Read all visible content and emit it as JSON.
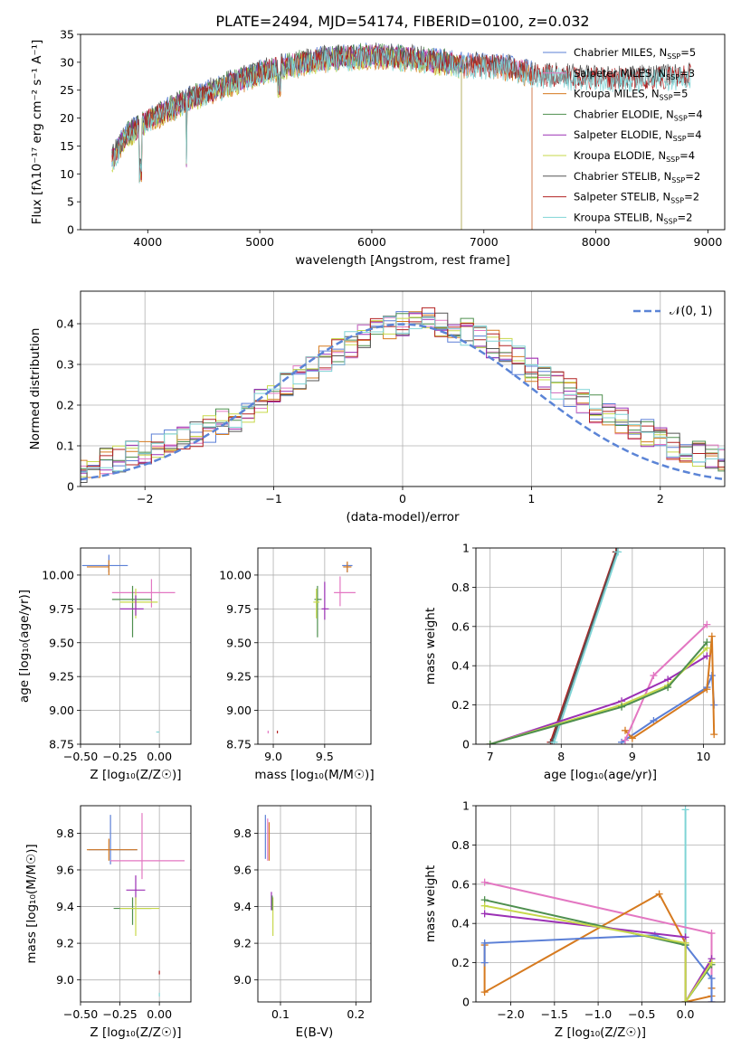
{
  "figure": {
    "title": "PLATE=2494, MJD=54174, FIBERID=0100, z=0.032"
  },
  "chart_data": [
    {
      "id": "spectrum",
      "type": "line",
      "xlabel": "wavelength [Angstrom, rest frame]",
      "ylabel": "Flux [f",
      "ylabel_html": "Flux [fλ10⁻¹⁷ erg cm⁻² s⁻¹ A⁻¹]",
      "xlim": [
        3400,
        9150
      ],
      "ylim": [
        0,
        35
      ],
      "xticks": [
        4000,
        5000,
        6000,
        7000,
        8000,
        9000
      ],
      "yticks": [
        0,
        5,
        10,
        15,
        20,
        25,
        30,
        35
      ],
      "grid": false,
      "legend_position": "top-right",
      "series": [
        {
          "name": "Chabrier MILES, N",
          "sub": "SSP",
          "suffix": "=5",
          "color": "#5b7fd6",
          "x_range": [
            3680,
            7430
          ]
        },
        {
          "name": "Salpeter MILES, N",
          "sub": "SSP",
          "suffix": "=3",
          "color": "#e377c2",
          "x_range": [
            3680,
            7430
          ]
        },
        {
          "name": "Kroupa MILES, N",
          "sub": "SSP",
          "suffix": "=5",
          "color": "#d67a1f",
          "x_range": [
            3680,
            7430
          ]
        },
        {
          "name": "Chabrier ELODIE, N",
          "sub": "SSP",
          "suffix": "=4",
          "color": "#4e8f4e",
          "x_range": [
            3680,
            6800
          ]
        },
        {
          "name": "Salpeter ELODIE, N",
          "sub": "SSP",
          "suffix": "=4",
          "color": "#9b30b5",
          "x_range": [
            3680,
            6800
          ]
        },
        {
          "name": "Kroupa ELODIE, N",
          "sub": "SSP",
          "suffix": "=4",
          "color": "#c7d84a",
          "x_range": [
            3680,
            6800
          ]
        },
        {
          "name": "Chabrier STELIB, N",
          "sub": "SSP",
          "suffix": "=2",
          "color": "#555555",
          "x_range": [
            3680,
            8850
          ]
        },
        {
          "name": "Salpeter STELIB, N",
          "sub": "SSP",
          "suffix": "=2",
          "color": "#b22222",
          "x_range": [
            3680,
            8850
          ]
        },
        {
          "name": "Kroupa STELIB, N",
          "sub": "SSP",
          "suffix": "=2",
          "color": "#7fd4d6",
          "x_range": [
            3680,
            8850
          ]
        }
      ],
      "continuum": {
        "x": [
          3680,
          3800,
          4000,
          4200,
          4400,
          4600,
          4800,
          5000,
          5300,
          5600,
          6000,
          6400,
          6800,
          7200,
          7500,
          8000,
          8500,
          8850
        ],
        "y": [
          13,
          17,
          20,
          22,
          24,
          25.5,
          27,
          28.5,
          30,
          31,
          31.5,
          31,
          30,
          29.5,
          28,
          27.5,
          27.5,
          28
        ]
      }
    },
    {
      "id": "residuals",
      "type": "step-histogram",
      "xlabel": "(data-model)/error",
      "ylabel": "Normed distribution",
      "xlim": [
        -2.5,
        2.5
      ],
      "ylim": [
        0,
        0.48
      ],
      "xticks": [
        -2,
        -1,
        0,
        1,
        2
      ],
      "yticks": [
        0.0,
        0.1,
        0.2,
        0.3,
        0.4
      ],
      "grid": true,
      "bin_width": 0.1,
      "base_values": [
        0.02,
        0.02,
        0.03,
        0.03,
        0.04,
        0.04,
        0.05,
        0.06,
        0.07,
        0.08,
        0.09,
        0.1,
        0.11,
        0.12,
        0.13,
        0.14,
        0.16,
        0.17,
        0.19,
        0.21,
        0.23,
        0.25,
        0.27,
        0.29,
        0.31,
        0.33,
        0.35,
        0.37,
        0.38,
        0.39,
        0.4,
        0.4,
        0.41,
        0.4,
        0.39,
        0.38,
        0.37,
        0.35,
        0.33,
        0.31,
        0.29,
        0.27,
        0.25,
        0.23,
        0.21,
        0.19,
        0.17,
        0.16,
        0.14,
        0.13,
        0.11,
        0.1,
        0.09,
        0.08,
        0.07,
        0.06,
        0.05,
        0.04,
        0.03,
        0.03,
        0.02
      ],
      "legend_position": "top-right",
      "legend_label": "𝒩(0, 1)",
      "reference_color": "#5b84d6"
    },
    {
      "id": "age-vs-Z",
      "type": "errorbar",
      "xlabel": "Z [log",
      "xlabel_html": "Z [log₁₀(Z/Z☉)]",
      "ylabel_html": "age  [log₁₀(age/yr)]",
      "xlim": [
        -0.5,
        0.2
      ],
      "ylim": [
        8.75,
        10.2
      ],
      "xticks": [
        -0.5,
        -0.25,
        0.0
      ],
      "xticklabels": [
        "−0.50",
        "−0.25",
        "0.00"
      ],
      "yticks": [
        8.75,
        9.0,
        9.25,
        9.5,
        9.75,
        10.0
      ],
      "yticklabels": [
        "8.75",
        "9.00",
        "9.25",
        "9.50",
        "9.75",
        "10.00"
      ],
      "grid": true,
      "points": [
        {
          "x": -0.32,
          "y": 10.07,
          "xerr": [
            0.17,
            0.12
          ],
          "yerr": [
            0.05,
            0.08
          ],
          "color": "#5b7fd6"
        },
        {
          "x": -0.32,
          "y": 10.06,
          "xerr": [
            0.14,
            0.0
          ],
          "yerr": [
            0.06,
            0.05
          ],
          "color": "#d67a1f"
        },
        {
          "x": -0.05,
          "y": 9.87,
          "xerr": [
            0.25,
            0.15
          ],
          "yerr": [
            0.11,
            0.1
          ],
          "color": "#e377c2"
        },
        {
          "x": -0.17,
          "y": 9.82,
          "xerr": [
            0.13,
            0.12
          ],
          "yerr": [
            0.28,
            0.1
          ],
          "color": "#4e8f4e"
        },
        {
          "x": -0.15,
          "y": 9.8,
          "xerr": [
            0.1,
            0.14
          ],
          "yerr": [
            0.12,
            0.1
          ],
          "color": "#c7d84a"
        },
        {
          "x": -0.15,
          "y": 9.75,
          "xerr": [
            0.1,
            0.05
          ],
          "yerr": [
            0.05,
            0.1
          ],
          "color": "#9b30b5"
        },
        {
          "x": 0.0,
          "y": 8.84,
          "xerr": [
            0.02,
            0.0
          ],
          "yerr": [
            0.0,
            0.0
          ],
          "color": "#7fd4d6"
        }
      ]
    },
    {
      "id": "age-vs-mass",
      "type": "errorbar",
      "xlabel_html": "mass [log₁₀(M/M☉)]",
      "xlim": [
        8.85,
        9.95
      ],
      "ylim": [
        8.75,
        10.2
      ],
      "xticks": [
        9.0,
        9.5
      ],
      "xticklabels": [
        "9.0",
        "9.5"
      ],
      "yticks": [
        8.75,
        9.0,
        9.25,
        9.5,
        9.75,
        10.0
      ],
      "yticklabels": [
        "8.75",
        "9.00",
        "9.25",
        "9.50",
        "9.75",
        "10.00"
      ],
      "grid": true,
      "points": [
        {
          "x": 9.72,
          "y": 10.07,
          "xerr": [
            0.05,
            0.05
          ],
          "yerr": [
            0.05,
            0.02
          ],
          "color": "#5b7fd6"
        },
        {
          "x": 9.72,
          "y": 10.06,
          "xerr": [
            0.04,
            0.04
          ],
          "yerr": [
            0.04,
            0.04
          ],
          "color": "#d67a1f"
        },
        {
          "x": 9.65,
          "y": 9.87,
          "xerr": [
            0.06,
            0.15
          ],
          "yerr": [
            0.1,
            0.12
          ],
          "color": "#e377c2"
        },
        {
          "x": 9.43,
          "y": 9.82,
          "xerr": [
            0.03,
            0.04
          ],
          "yerr": [
            0.28,
            0.1
          ],
          "color": "#4e8f4e"
        },
        {
          "x": 9.42,
          "y": 9.8,
          "xerr": [
            0.03,
            0.03
          ],
          "yerr": [
            0.12,
            0.1
          ],
          "color": "#c7d84a"
        },
        {
          "x": 9.5,
          "y": 9.75,
          "xerr": [
            0.03,
            0.04
          ],
          "yerr": [
            0.08,
            0.2
          ],
          "color": "#9b30b5"
        },
        {
          "x": 9.04,
          "y": 8.84,
          "xerr": [
            0.0,
            0.0
          ],
          "yerr": [
            0.01,
            0.01
          ],
          "color": "#b22222"
        },
        {
          "x": 8.95,
          "y": 8.84,
          "xerr": [
            0.0,
            0.0
          ],
          "yerr": [
            0.01,
            0.01
          ],
          "color": "#e377c2"
        }
      ]
    },
    {
      "id": "weight-vs-age",
      "type": "line",
      "xlabel_html": "age  [log₁₀(age/yr)]",
      "ylabel": "mass weight",
      "xlim": [
        6.8,
        10.3
      ],
      "ylim": [
        0,
        1.0
      ],
      "xticks": [
        7,
        8,
        9,
        10
      ],
      "yticks": [
        0.0,
        0.2,
        0.4,
        0.6,
        0.8,
        1.0
      ],
      "grid": true,
      "series": [
        {
          "color": "#b22222",
          "x": [
            7.85,
            8.77
          ],
          "y": [
            0.01,
            0.98
          ]
        },
        {
          "color": "#555555",
          "x": [
            7.87,
            8.78
          ],
          "y": [
            0.01,
            0.98
          ]
        },
        {
          "color": "#7fd4d6",
          "x": [
            7.9,
            8.8
          ],
          "y": [
            0.01,
            0.98
          ]
        },
        {
          "color": "#5b7fd6",
          "x": [
            8.85,
            9.3,
            10.05,
            10.12,
            10.15
          ],
          "y": [
            0.01,
            0.12,
            0.29,
            0.35,
            0.2
          ]
        },
        {
          "color": "#d67a1f",
          "x": [
            8.9,
            9.0,
            10.05,
            10.12,
            10.15
          ],
          "y": [
            0.07,
            0.03,
            0.28,
            0.55,
            0.05
          ]
        },
        {
          "color": "#e377c2",
          "x": [
            8.9,
            9.3,
            10.05
          ],
          "y": [
            0.02,
            0.35,
            0.61
          ]
        },
        {
          "color": "#9b30b5",
          "x": [
            7.0,
            8.85,
            9.5,
            10.05
          ],
          "y": [
            0.0,
            0.22,
            0.33,
            0.45
          ]
        },
        {
          "color": "#c7d84a",
          "x": [
            7.0,
            8.85,
            9.5,
            10.05
          ],
          "y": [
            0.0,
            0.2,
            0.3,
            0.49
          ]
        },
        {
          "color": "#4e8f4e",
          "x": [
            7.0,
            8.85,
            9.5,
            10.05
          ],
          "y": [
            0.0,
            0.19,
            0.29,
            0.52
          ]
        }
      ]
    },
    {
      "id": "mass-vs-Z",
      "type": "errorbar",
      "xlabel_html": "Z [log₁₀(Z/Z☉)]",
      "ylabel_html": "mass [log₁₀(M/M☉)]",
      "xlim": [
        -0.5,
        0.2
      ],
      "ylim": [
        8.88,
        9.95
      ],
      "xticks": [
        -0.5,
        -0.25,
        0.0
      ],
      "xticklabels": [
        "−0.50",
        "−0.25",
        "0.00"
      ],
      "yticks": [
        9.0,
        9.2,
        9.4,
        9.6,
        9.8
      ],
      "yticklabels": [
        "9.0",
        "9.2",
        "9.4",
        "9.6",
        "9.8"
      ],
      "grid": true,
      "points": [
        {
          "x": -0.31,
          "y": 9.71,
          "xerr": [
            0.14,
            0.17
          ],
          "yerr": [
            0.08,
            0.19
          ],
          "color": "#5b7fd6"
        },
        {
          "x": -0.32,
          "y": 9.71,
          "xerr": [
            0.14,
            0.18
          ],
          "yerr": [
            0.06,
            0.06
          ],
          "color": "#d67a1f"
        },
        {
          "x": -0.11,
          "y": 9.65,
          "xerr": [
            0.2,
            0.27
          ],
          "yerr": [
            0.1,
            0.26
          ],
          "color": "#e377c2"
        },
        {
          "x": -0.15,
          "y": 9.49,
          "xerr": [
            0.06,
            0.06
          ],
          "yerr": [
            0.08,
            0.08
          ],
          "color": "#9b30b5"
        },
        {
          "x": -0.17,
          "y": 9.39,
          "xerr": [
            0.12,
            0.12
          ],
          "yerr": [
            0.09,
            0.06
          ],
          "color": "#4e8f4e"
        },
        {
          "x": -0.15,
          "y": 9.39,
          "xerr": [
            0.1,
            0.15
          ],
          "yerr": [
            0.15,
            0.06
          ],
          "color": "#c7d84a"
        },
        {
          "x": 0.0,
          "y": 9.04,
          "xerr": [
            0.0,
            0.0
          ],
          "yerr": [
            0.01,
            0.01
          ],
          "color": "#b22222"
        },
        {
          "x": 0.0,
          "y": 8.92,
          "xerr": [
            0.0,
            0.0
          ],
          "yerr": [
            0.01,
            0.01
          ],
          "color": "#7fd4d6"
        }
      ]
    },
    {
      "id": "mass-vs-EBV",
      "type": "errorbar",
      "xlabel": "E(B-V)",
      "xlim": [
        0.07,
        0.22
      ],
      "ylim": [
        8.88,
        9.95
      ],
      "xticks": [
        0.1,
        0.2
      ],
      "xticklabels": [
        "0.1",
        "0.2"
      ],
      "yticks": [
        9.0,
        9.2,
        9.4,
        9.6,
        9.8
      ],
      "yticklabels": [
        "9.0",
        "9.2",
        "9.4",
        "9.6",
        "9.8"
      ],
      "grid": true,
      "points": [
        {
          "x": 0.08,
          "y": 9.79,
          "xerr": [
            0,
            0
          ],
          "yerr": [
            0.13,
            0.11
          ],
          "color": "#5b7fd6"
        },
        {
          "x": 0.083,
          "y": 9.73,
          "xerr": [
            0,
            0
          ],
          "yerr": [
            0.08,
            0.15
          ],
          "color": "#e377c2"
        },
        {
          "x": 0.085,
          "y": 9.72,
          "xerr": [
            0,
            0
          ],
          "yerr": [
            0.07,
            0.14
          ],
          "color": "#d67a1f"
        },
        {
          "x": 0.088,
          "y": 9.43,
          "xerr": [
            0,
            0
          ],
          "yerr": [
            0.05,
            0.05
          ],
          "color": "#9b30b5"
        },
        {
          "x": 0.09,
          "y": 9.39,
          "xerr": [
            0,
            0
          ],
          "yerr": [
            0.15,
            0.06
          ],
          "color": "#c7d84a"
        },
        {
          "x": 0.089,
          "y": 9.42,
          "xerr": [
            0,
            0
          ],
          "yerr": [
            0.04,
            0.04
          ],
          "color": "#4e8f4e"
        }
      ]
    },
    {
      "id": "weight-vs-Z",
      "type": "line",
      "xlabel_html": "Z [log₁₀(Z/Z☉)]",
      "ylabel": "mass weight",
      "xlim": [
        -2.4,
        0.45
      ],
      "ylim": [
        0,
        1.0
      ],
      "xticks": [
        -2.0,
        -1.5,
        -1.0,
        -0.5,
        0.0
      ],
      "xticklabels": [
        "−2.0",
        "−1.5",
        "−1.0",
        "−0.5",
        "0.0"
      ],
      "yticks": [
        0.0,
        0.2,
        0.4,
        0.6,
        0.8,
        1.0
      ],
      "grid": true,
      "series": [
        {
          "color": "#7fd4d6",
          "x": [
            0.0,
            0.0
          ],
          "y": [
            0.0,
            0.98
          ]
        },
        {
          "color": "#e377c2",
          "x": [
            -2.3,
            0.3,
            0.3
          ],
          "y": [
            0.61,
            0.35,
            0.0
          ]
        },
        {
          "color": "#d67a1f",
          "x": [
            -2.3,
            -2.3,
            -0.3,
            0.0,
            0.0,
            0.3,
            0.3
          ],
          "y": [
            0.29,
            0.05,
            0.55,
            0.3,
            0.0,
            0.03,
            0.07
          ]
        },
        {
          "color": "#5b7fd6",
          "x": [
            -2.3,
            -2.3,
            -0.35,
            0.0,
            0.3,
            0.3
          ],
          "y": [
            0.2,
            0.3,
            0.34,
            0.29,
            0.12,
            0.0
          ]
        },
        {
          "color": "#4e8f4e",
          "x": [
            -2.3,
            0.0,
            0.0,
            0.3
          ],
          "y": [
            0.52,
            0.29,
            0.0,
            0.19
          ]
        },
        {
          "color": "#9b30b5",
          "x": [
            -2.3,
            0.0,
            0.0,
            0.3
          ],
          "y": [
            0.45,
            0.33,
            0.0,
            0.22
          ]
        },
        {
          "color": "#c7d84a",
          "x": [
            -2.3,
            0.0,
            0.0,
            0.3
          ],
          "y": [
            0.49,
            0.3,
            0.0,
            0.2
          ]
        }
      ]
    }
  ]
}
